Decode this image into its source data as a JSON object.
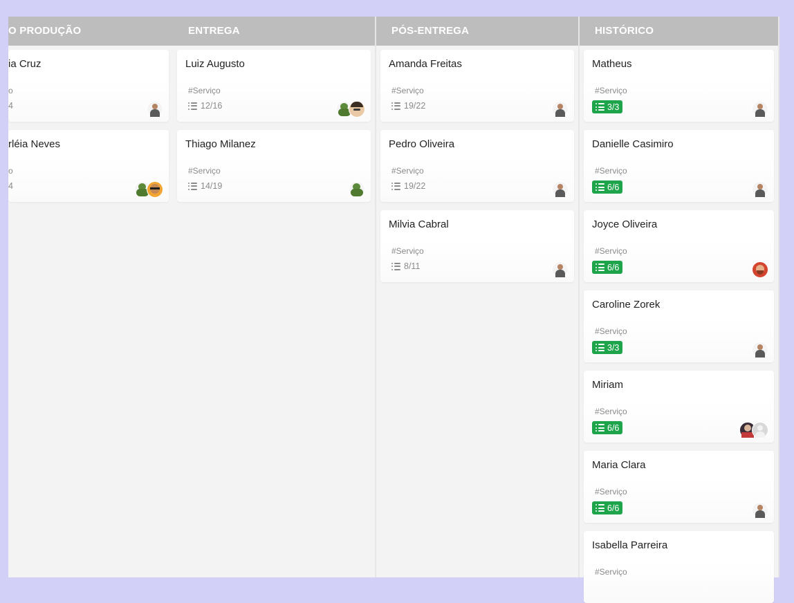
{
  "board": {
    "columns": [
      {
        "title": "O PRODUÇÃO",
        "cards": [
          {
            "title": "ia Cruz",
            "tag": "o",
            "progress": "4",
            "complete": false,
            "avatars": [
              "person"
            ]
          },
          {
            "title": "rléia Neves",
            "tag": "o",
            "progress": "4",
            "complete": false,
            "avatars": [
              "hulk",
              "glasses"
            ]
          }
        ]
      },
      {
        "title": "ENTREGA",
        "cards": [
          {
            "title": "Luiz Augusto",
            "tag": "#Serviço",
            "progress": "12/16",
            "complete": false,
            "avatars": [
              "hulk",
              "face"
            ]
          },
          {
            "title": "Thiago Milanez",
            "tag": "#Serviço",
            "progress": "14/19",
            "complete": false,
            "avatars": [
              "hulk"
            ]
          }
        ]
      },
      {
        "title": "PÓS-ENTREGA",
        "cards": [
          {
            "title": "Amanda Freitas",
            "tag": "#Serviço",
            "progress": "19/22",
            "complete": false,
            "avatars": [
              "person"
            ]
          },
          {
            "title": "Pedro Oliveira",
            "tag": "#Serviço",
            "progress": "19/22",
            "complete": false,
            "avatars": [
              "person"
            ]
          },
          {
            "title": "Milvia Cabral",
            "tag": "#Serviço",
            "progress": "8/11",
            "complete": false,
            "avatars": [
              "person"
            ]
          }
        ]
      },
      {
        "title": "HISTÓRICO",
        "cards": [
          {
            "title": "Matheus",
            "tag": "#Serviço",
            "progress": "3/3",
            "complete": true,
            "avatars": [
              "person"
            ]
          },
          {
            "title": "Danielle Casimiro",
            "tag": "#Serviço",
            "progress": "6/6",
            "complete": true,
            "avatars": [
              "person"
            ]
          },
          {
            "title": "Joyce Oliveira",
            "tag": "#Serviço",
            "progress": "6/6",
            "complete": true,
            "avatars": [
              "red"
            ]
          },
          {
            "title": "Caroline Zorek",
            "tag": "#Serviço",
            "progress": "3/3",
            "complete": true,
            "avatars": [
              "person"
            ]
          },
          {
            "title": "Miriam",
            "tag": "#Serviço",
            "progress": "6/6",
            "complete": true,
            "avatars": [
              "dark",
              "grey"
            ]
          },
          {
            "title": "Maria Clara",
            "tag": "#Serviço",
            "progress": "6/6",
            "complete": true,
            "avatars": [
              "person"
            ]
          },
          {
            "title": "Isabella Parreira",
            "tag": "#Serviço",
            "progress": null,
            "complete": true,
            "avatars": []
          }
        ]
      }
    ]
  },
  "colors": {
    "page_background": "#d3d0f7",
    "column_background": "#f3f3f3",
    "header_background": "#bdbdbd",
    "header_text": "#ffffff",
    "complete_badge": "#1ea54c",
    "muted_text": "#8a8a8a"
  },
  "icons": {
    "progress": "checklist-icon",
    "assignee": "avatar"
  }
}
